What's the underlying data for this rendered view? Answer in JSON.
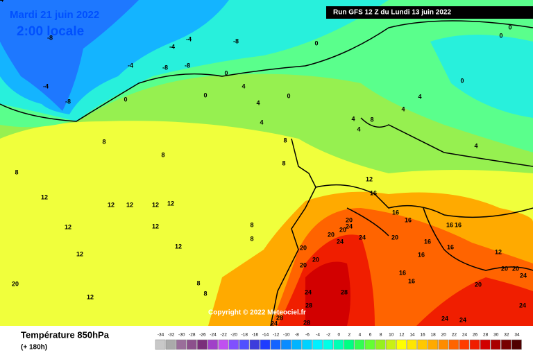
{
  "header": {
    "date": "Mardi 21 juin 2022",
    "time": "2:00 locale",
    "run": "Run GFS 12 Z du Lundi 13 juin 2022"
  },
  "footer": {
    "title": "Température 850hPa",
    "lead": "(+ 180h)",
    "copyright": "Copyright © 2022 Meteociel.fr"
  },
  "map_labels": [
    -8,
    -4,
    -8,
    -4,
    -4,
    -8,
    -8,
    -4,
    -8,
    0,
    0,
    0,
    0,
    0,
    0,
    0,
    0,
    4,
    4,
    4,
    4,
    4,
    4,
    4,
    4,
    8,
    8,
    8,
    8,
    8,
    8,
    8,
    8,
    8,
    8,
    12,
    12,
    12,
    12,
    12,
    12,
    12,
    12,
    12,
    12,
    12,
    12,
    16,
    16,
    16,
    16,
    16,
    16,
    16,
    16,
    16,
    16,
    20,
    20,
    20,
    20,
    20,
    20,
    20,
    20,
    20,
    20,
    20,
    24,
    24,
    24,
    24,
    24,
    24,
    24,
    24,
    28,
    28,
    28,
    28,
    24,
    24
  ],
  "legend": {
    "ticks": [
      -34,
      -32,
      -30,
      -28,
      -26,
      -24,
      -22,
      -20,
      -18,
      -16,
      -14,
      -12,
      -10,
      -8,
      -6,
      -4,
      -2,
      0,
      2,
      4,
      6,
      8,
      10,
      12,
      14,
      16,
      18,
      20,
      22,
      24,
      26,
      28,
      30,
      32,
      34
    ],
    "colors": [
      "#c8c8c8",
      "#aaaaaa",
      "#9a6e9a",
      "#8c508c",
      "#7a2f7a",
      "#a040c8",
      "#c050f0",
      "#8050ff",
      "#5050ff",
      "#3c3cdc",
      "#1e3cff",
      "#1464ff",
      "#0a8cff",
      "#00b4ff",
      "#00d2ff",
      "#00f0ff",
      "#00ffe6",
      "#00ffb4",
      "#00ff82",
      "#32ff50",
      "#64ff32",
      "#96f01e",
      "#c8f014",
      "#ffff00",
      "#ffe600",
      "#ffc800",
      "#ffaa00",
      "#ff8c00",
      "#ff6400",
      "#ff3c00",
      "#f01e00",
      "#d20000",
      "#aa0000",
      "#780000",
      "#500000"
    ]
  }
}
